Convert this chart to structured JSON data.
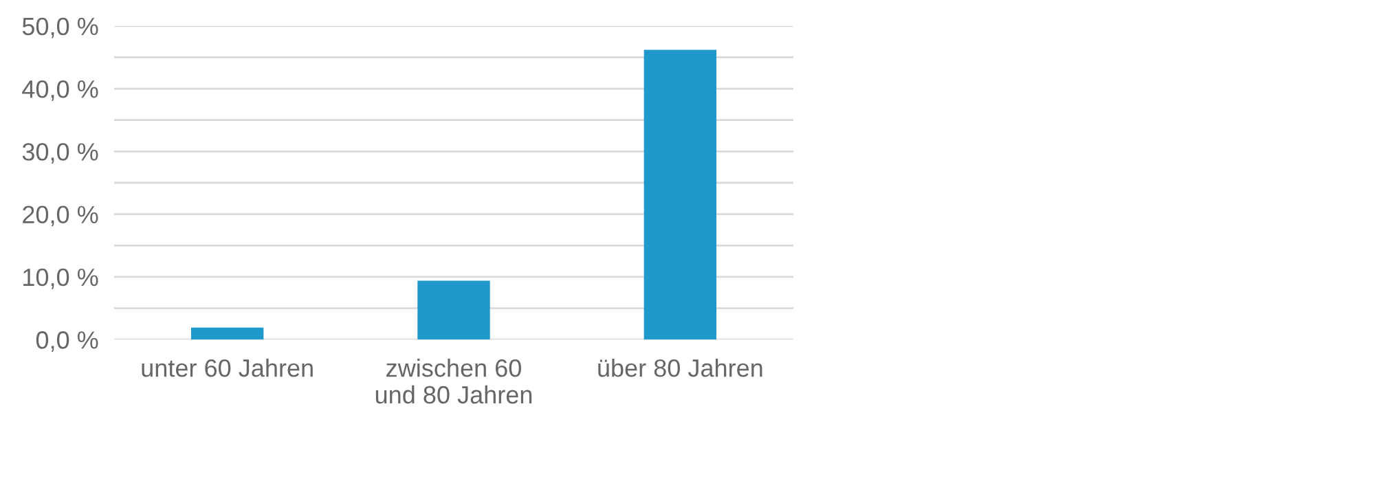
{
  "chart_data": {
    "type": "bar",
    "categories": [
      "unter 60 Jahren",
      "zwischen 60\nund 80 Jahren",
      "über 80 Jahren"
    ],
    "values": [
      1.9,
      9.4,
      46.2
    ],
    "color": "#1f99cc",
    "ylim": [
      0,
      50
    ],
    "yticks": [
      {
        "value": 0,
        "label": "0,0 %"
      },
      {
        "value": 5,
        "label": null
      },
      {
        "value": 10,
        "label": "10,0 %"
      },
      {
        "value": 15,
        "label": null
      },
      {
        "value": 20,
        "label": "20,0 %"
      },
      {
        "value": 25,
        "label": null
      },
      {
        "value": 30,
        "label": "30,0 %"
      },
      {
        "value": 35,
        "label": null
      },
      {
        "value": 40,
        "label": "40,0 %"
      },
      {
        "value": 45,
        "label": null
      },
      {
        "value": 50,
        "label": "50,0 %"
      }
    ],
    "grid": "y"
  }
}
